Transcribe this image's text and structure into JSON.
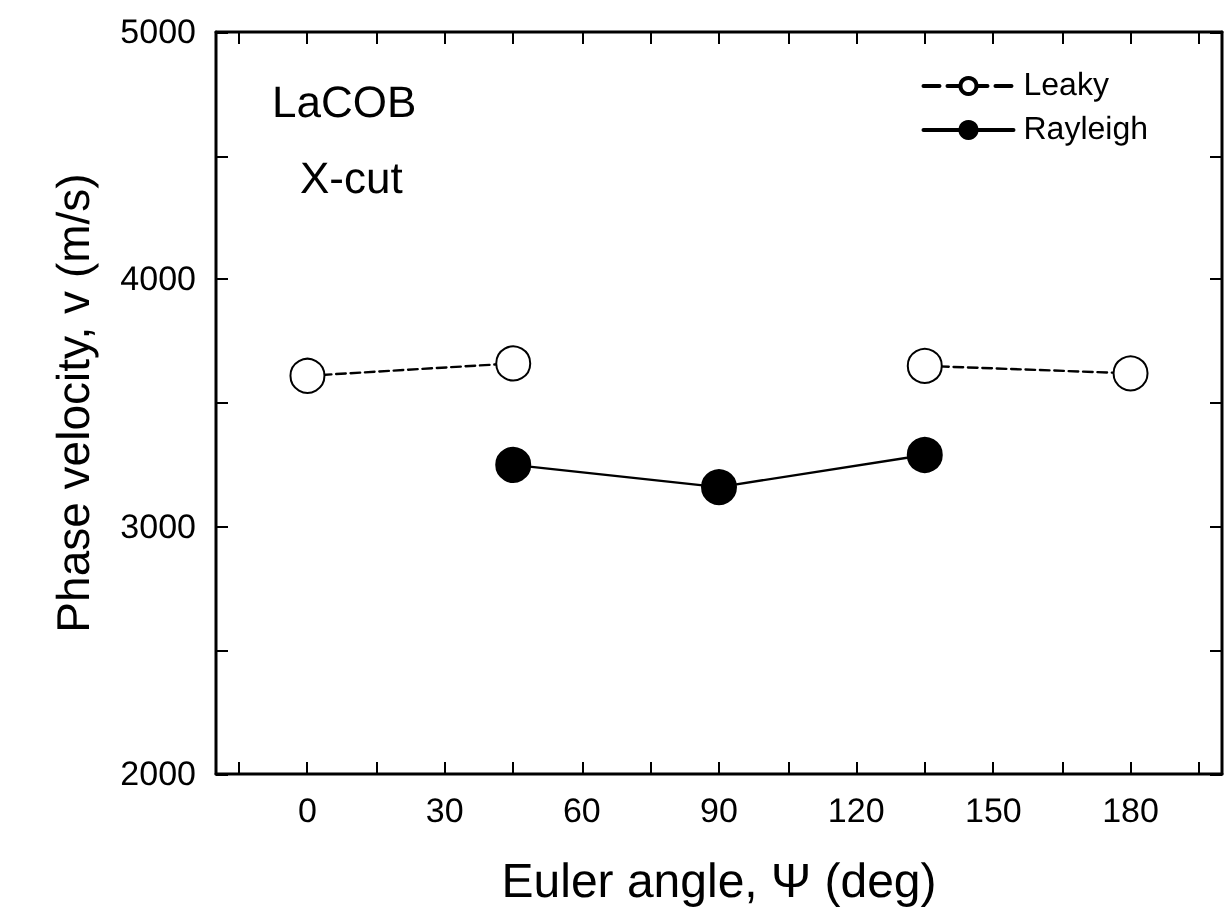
{
  "chart_data": {
    "type": "line",
    "xlabel": "Euler angle, Ψ (deg)",
    "ylabel": "Phase velocity, v (m/s)",
    "annotations": [
      "LaCOB",
      "X-cut"
    ],
    "xlim": [
      -20,
      200
    ],
    "xticks": [
      0,
      30,
      60,
      90,
      120,
      150,
      180
    ],
    "ylim": [
      2000,
      5000
    ],
    "yticks": [
      2000,
      3000,
      4000,
      5000
    ],
    "grid": false,
    "legend": "top right",
    "marker": "circle",
    "series": [
      {
        "name": "Leaky",
        "color": "#000000",
        "line_style": "dashed",
        "x": [
          0,
          45,
          90,
          135,
          180
        ],
        "values": [
          3610,
          3660,
          null,
          3650,
          3620
        ]
      },
      {
        "name": "Rayleigh",
        "color": "#000000",
        "line_style": "solid",
        "x": [
          45,
          90,
          135
        ],
        "values": [
          3250,
          3160,
          3290
        ]
      }
    ]
  }
}
